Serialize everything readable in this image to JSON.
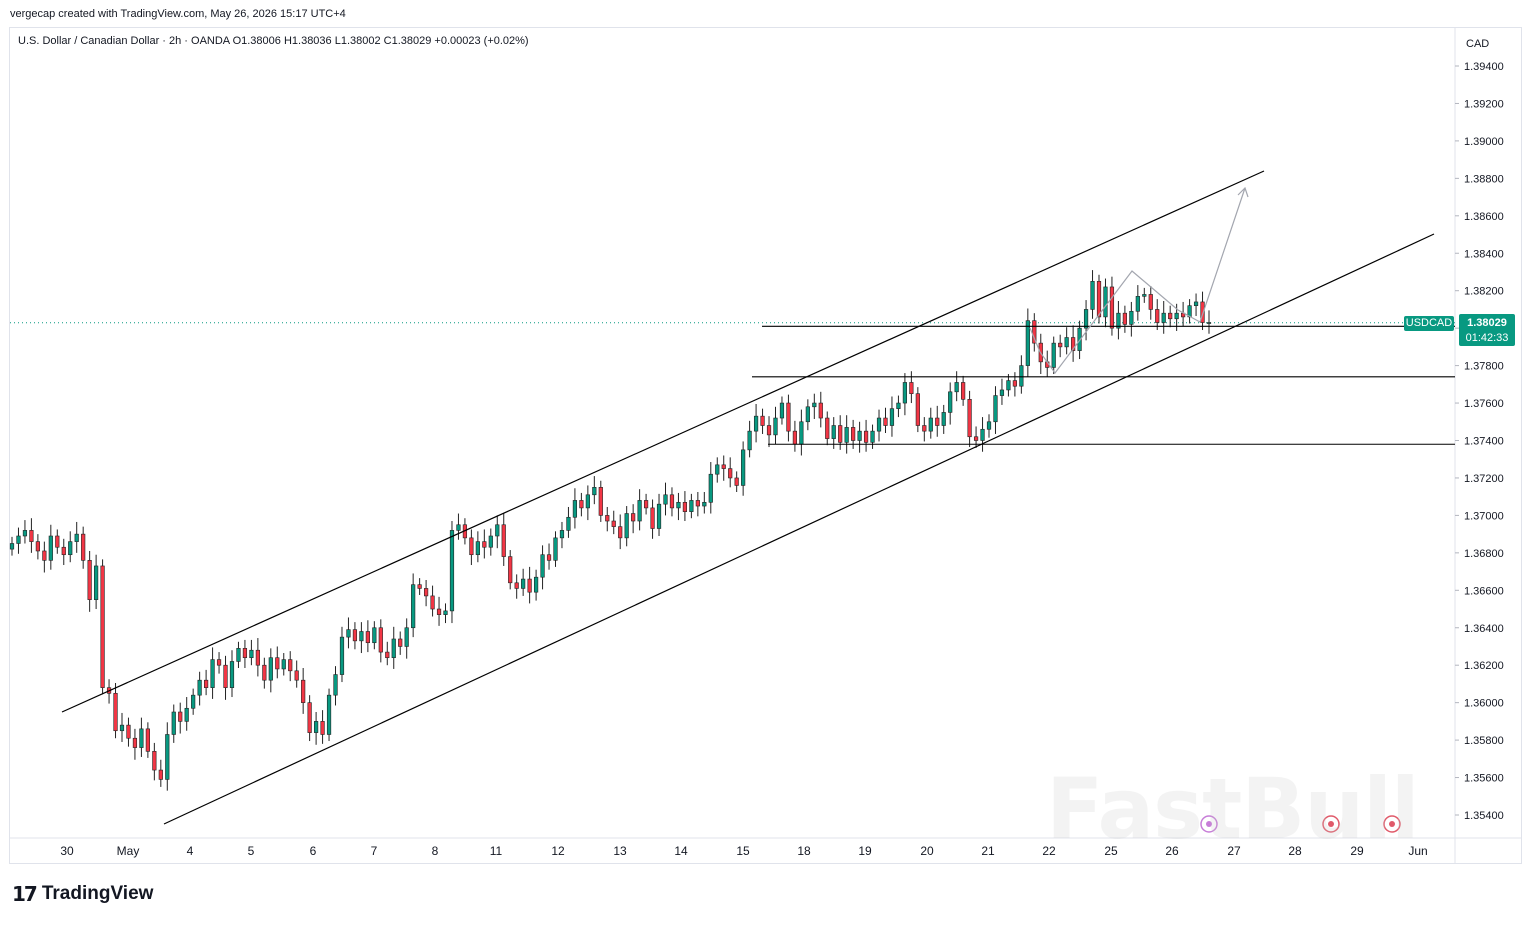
{
  "header": {
    "credit": "vergecap created with TradingView.com, May 26, 2026 15:17 UTC+4",
    "legend": "U.S. Dollar / Canadian Dollar · 2h · OANDA  O1.38006  H1.38036  L1.38002  C1.38029  +0.00023 (+0.02%)",
    "currency": "CAD"
  },
  "price_tag": {
    "symbol": "USDCAD",
    "price": "1.38029",
    "countdown": "01:42:33"
  },
  "footer": {
    "logo_mark": "17",
    "logo_text": "TradingView"
  },
  "watermark": "FastBull",
  "colors": {
    "up": "#089981",
    "down": "#f23645",
    "line": "#000000",
    "grid": "#e0e3eb"
  },
  "chart_data": {
    "type": "candlestick",
    "symbol": "USDCAD",
    "timeframe": "2h",
    "ylim": [
      1.353,
      1.3955
    ],
    "y_ticks": [
      "1.35400",
      "1.35600",
      "1.35800",
      "1.36000",
      "1.36200",
      "1.36400",
      "1.36600",
      "1.36800",
      "1.37000",
      "1.37200",
      "1.37400",
      "1.37600",
      "1.37800",
      "1.38000",
      "1.38200",
      "1.38400",
      "1.38600",
      "1.38800",
      "1.39000",
      "1.39200",
      "1.39400"
    ],
    "x_ticks": [
      "30",
      "May",
      "4",
      "5",
      "6",
      "7",
      "8",
      "11",
      "12",
      "13",
      "14",
      "15",
      "18",
      "19",
      "20",
      "21",
      "22",
      "25",
      "26",
      "27",
      "28",
      "29",
      "Jun"
    ],
    "last_price": 1.38029,
    "path_points": [
      [
        1.3682,
        1.3685
      ],
      [
        1.3685,
        1.3689
      ],
      [
        1.3689,
        1.3692
      ],
      [
        1.3692,
        1.3686
      ],
      [
        1.3686,
        1.3681
      ],
      [
        1.3681,
        1.3676
      ],
      [
        1.3676,
        1.3689
      ],
      [
        1.3689,
        1.3683
      ],
      [
        1.3683,
        1.3679
      ],
      [
        1.3679,
        1.3686
      ],
      [
        1.3686,
        1.369
      ],
      [
        1.369,
        1.3676
      ],
      [
        1.3676,
        1.3655
      ],
      [
        1.3655,
        1.3673
      ],
      [
        1.3673,
        1.3608
      ],
      [
        1.3608,
        1.3605
      ],
      [
        1.3605,
        1.3585
      ],
      [
        1.3585,
        1.3588
      ],
      [
        1.3588,
        1.3581
      ],
      [
        1.3581,
        1.3576
      ],
      [
        1.3576,
        1.3586
      ],
      [
        1.3586,
        1.3574
      ],
      [
        1.3574,
        1.3564
      ],
      [
        1.3564,
        1.3559
      ],
      [
        1.3559,
        1.3583
      ],
      [
        1.3583,
        1.3595
      ],
      [
        1.3595,
        1.359
      ],
      [
        1.359,
        1.3597
      ],
      [
        1.3597,
        1.3604
      ],
      [
        1.3604,
        1.3612
      ],
      [
        1.3612,
        1.3608
      ],
      [
        1.3608,
        1.3623
      ],
      [
        1.3623,
        1.362
      ],
      [
        1.362,
        1.3608
      ],
      [
        1.3608,
        1.3622
      ],
      [
        1.3622,
        1.3629
      ],
      [
        1.3629,
        1.3624
      ],
      [
        1.3624,
        1.3628
      ],
      [
        1.3628,
        1.362
      ],
      [
        1.362,
        1.3612
      ],
      [
        1.3612,
        1.3624
      ],
      [
        1.3624,
        1.3618
      ],
      [
        1.3618,
        1.3623
      ],
      [
        1.3623,
        1.3617
      ],
      [
        1.3617,
        1.3612
      ],
      [
        1.3612,
        1.36
      ],
      [
        1.36,
        1.3584
      ],
      [
        1.3584,
        1.359
      ],
      [
        1.359,
        1.3583
      ],
      [
        1.3583,
        1.3604
      ],
      [
        1.3604,
        1.3615
      ],
      [
        1.3615,
        1.3635
      ],
      [
        1.3635,
        1.3639
      ],
      [
        1.3639,
        1.3633
      ],
      [
        1.3633,
        1.3638
      ],
      [
        1.3638,
        1.3632
      ],
      [
        1.3632,
        1.364
      ],
      [
        1.364,
        1.3627
      ],
      [
        1.3627,
        1.3624
      ],
      [
        1.3624,
        1.3634
      ],
      [
        1.3634,
        1.363
      ],
      [
        1.363,
        1.364
      ],
      [
        1.364,
        1.3663
      ],
      [
        1.3663,
        1.3661
      ],
      [
        1.3661,
        1.3657
      ],
      [
        1.3657,
        1.365
      ],
      [
        1.365,
        1.3647
      ],
      [
        1.3647,
        1.3649
      ],
      [
        1.3649,
        1.3692
      ],
      [
        1.3692,
        1.3695
      ],
      [
        1.3695,
        1.3688
      ],
      [
        1.3688,
        1.3679
      ],
      [
        1.3679,
        1.3686
      ],
      [
        1.3686,
        1.3683
      ],
      [
        1.3683,
        1.3689
      ],
      [
        1.3689,
        1.3695
      ],
      [
        1.3695,
        1.3678
      ],
      [
        1.3678,
        1.3664
      ],
      [
        1.3664,
        1.3661
      ],
      [
        1.3661,
        1.3666
      ],
      [
        1.3666,
        1.3659
      ],
      [
        1.3659,
        1.3667
      ],
      [
        1.3667,
        1.3679
      ],
      [
        1.3679,
        1.3676
      ],
      [
        1.3676,
        1.3688
      ],
      [
        1.3688,
        1.3692
      ],
      [
        1.3692,
        1.3699
      ],
      [
        1.3699,
        1.3708
      ],
      [
        1.3708,
        1.3704
      ],
      [
        1.3704,
        1.3711
      ],
      [
        1.3711,
        1.3715
      ],
      [
        1.3715,
        1.37
      ],
      [
        1.37,
        1.3697
      ],
      [
        1.3697,
        1.3694
      ],
      [
        1.3694,
        1.3688
      ],
      [
        1.3688,
        1.3701
      ],
      [
        1.3701,
        1.3697
      ],
      [
        1.3697,
        1.3708
      ],
      [
        1.3708,
        1.3704
      ],
      [
        1.3704,
        1.3693
      ],
      [
        1.3693,
        1.3706
      ],
      [
        1.3706,
        1.3711
      ],
      [
        1.3711,
        1.3704
      ],
      [
        1.3704,
        1.3707
      ],
      [
        1.3707,
        1.3702
      ],
      [
        1.3702,
        1.3708
      ],
      [
        1.3708,
        1.3705
      ],
      [
        1.3705,
        1.3707
      ],
      [
        1.3707,
        1.3722
      ],
      [
        1.3722,
        1.3727
      ],
      [
        1.3727,
        1.3725
      ],
      [
        1.3725,
        1.372
      ],
      [
        1.372,
        1.3716
      ],
      [
        1.3716,
        1.3735
      ],
      [
        1.3735,
        1.3745
      ],
      [
        1.3745,
        1.3753
      ],
      [
        1.3753,
        1.3748
      ],
      [
        1.3748,
        1.3743
      ],
      [
        1.3743,
        1.3752
      ],
      [
        1.3752,
        1.376
      ],
      [
        1.376,
        1.3745
      ],
      [
        1.3745,
        1.3738
      ],
      [
        1.3738,
        1.375
      ],
      [
        1.375,
        1.3758
      ],
      [
        1.3758,
        1.376
      ],
      [
        1.376,
        1.3752
      ],
      [
        1.3752,
        1.3741
      ],
      [
        1.3741,
        1.3748
      ],
      [
        1.3748,
        1.3739
      ],
      [
        1.3739,
        1.3747
      ],
      [
        1.3747,
        1.374
      ],
      [
        1.374,
        1.3745
      ],
      [
        1.3745,
        1.3739
      ],
      [
        1.3739,
        1.3745
      ],
      [
        1.3745,
        1.3752
      ],
      [
        1.3752,
        1.3748
      ],
      [
        1.3748,
        1.3757
      ],
      [
        1.3757,
        1.376
      ],
      [
        1.376,
        1.3771
      ],
      [
        1.3771,
        1.3765
      ],
      [
        1.3765,
        1.3748
      ],
      [
        1.3748,
        1.3745
      ],
      [
        1.3745,
        1.3752
      ],
      [
        1.3752,
        1.3748
      ],
      [
        1.3748,
        1.3755
      ],
      [
        1.3755,
        1.3766
      ],
      [
        1.3766,
        1.3771
      ],
      [
        1.3771,
        1.3762
      ],
      [
        1.3762,
        1.3742
      ],
      [
        1.3742,
        1.374
      ],
      [
        1.374,
        1.3746
      ],
      [
        1.3746,
        1.375
      ],
      [
        1.375,
        1.3764
      ],
      [
        1.3764,
        1.3767
      ],
      [
        1.3767,
        1.3772
      ],
      [
        1.3772,
        1.3769
      ],
      [
        1.3769,
        1.378
      ],
      [
        1.378,
        1.3804
      ],
      [
        1.3804,
        1.3792
      ],
      [
        1.3792,
        1.3782
      ],
      [
        1.3782,
        1.3779
      ],
      [
        1.3779,
        1.3792
      ],
      [
        1.3792,
        1.379
      ],
      [
        1.379,
        1.3795
      ],
      [
        1.3795,
        1.3788
      ],
      [
        1.3788,
        1.38
      ],
      [
        1.38,
        1.381
      ],
      [
        1.381,
        1.3825
      ],
      [
        1.3825,
        1.3806
      ],
      [
        1.3806,
        1.3822
      ],
      [
        1.3822,
        1.38
      ],
      [
        1.38,
        1.3808
      ],
      [
        1.3808,
        1.3802
      ],
      [
        1.3802,
        1.3809
      ],
      [
        1.3809,
        1.3817
      ],
      [
        1.3817,
        1.3818
      ],
      [
        1.3818,
        1.381
      ],
      [
        1.381,
        1.3803
      ],
      [
        1.3803,
        1.3808
      ],
      [
        1.3808,
        1.3805
      ],
      [
        1.3805,
        1.3808
      ],
      [
        1.3808,
        1.3806
      ],
      [
        1.3806,
        1.3812
      ],
      [
        1.3812,
        1.3814
      ],
      [
        1.3814,
        1.3803
      ],
      [
        1.3803,
        1.3803
      ]
    ],
    "drawings": {
      "channel_upper": [
        [
          62,
          712
        ],
        [
          1264,
          171
        ]
      ],
      "channel_lower": [
        [
          164,
          824
        ],
        [
          1434,
          234
        ]
      ],
      "support_lines": [
        [
          762,
          1455,
          1.3801
        ],
        [
          752,
          1455,
          1.3774
        ],
        [
          768,
          1455,
          1.3738
        ]
      ],
      "projection": [
        [
          1030,
          328
        ],
        [
          1040,
          352
        ],
        [
          1055,
          373
        ],
        [
          1132,
          271
        ],
        [
          1178,
          310
        ],
        [
          1200,
          322
        ],
        [
          1245,
          188
        ]
      ]
    }
  }
}
